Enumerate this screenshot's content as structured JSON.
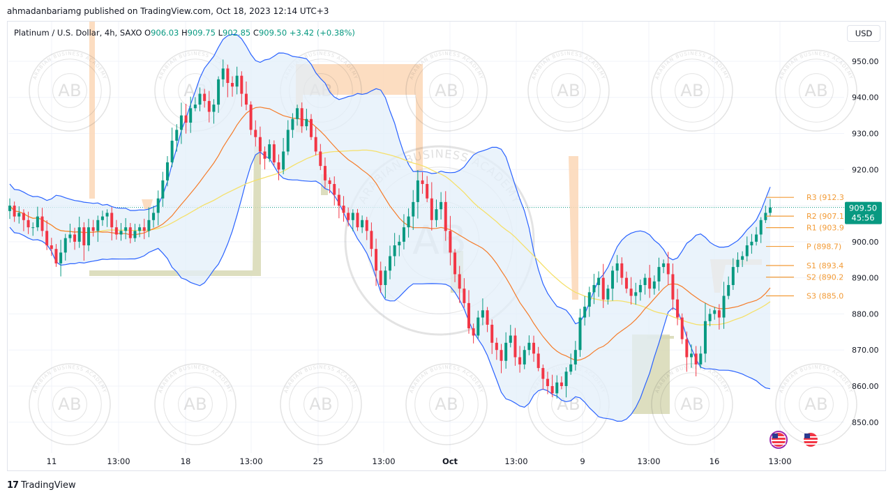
{
  "caption": "ahmadanbariamg published on TradingView.com, Oct 18, 2023 12:14 UTC+3",
  "legend": {
    "symbol": "Platinum / U.S. Dollar, 4h, SAXO",
    "o_label": "O",
    "o": "906.03",
    "h_label": "H",
    "h": "909.75",
    "l_label": "L",
    "l": "902.85",
    "c_label": "C",
    "c": "909.50",
    "change": "+3.42 (+0.38%)"
  },
  "currency_button": "USD",
  "footer": {
    "logo": "17",
    "brand": "TradingView"
  },
  "watermark": {
    "monogram": "AB",
    "ring_text": "ARABIAN BUSINESS ACADEMY"
  },
  "colors": {
    "up": "#089981",
    "down": "#f23645",
    "bollinger": "#2962ff",
    "bollinger_fill": "#e3effa",
    "ma_orange": "#f57c2a",
    "ma_yellow": "#f5e06a",
    "pivot": "#f29b37",
    "supply_zone": "#fbd7b6",
    "demand_zone": "#d7d8b4"
  },
  "chart_data": {
    "type": "candlestick",
    "symbol": "Platinum / U.S. Dollar",
    "timeframe": "4h",
    "ylim": [
      843,
      961
    ],
    "y_ticks": [
      "950.00",
      "940.00",
      "930.00",
      "920.00",
      "910.00",
      "900.00",
      "890.00",
      "880.00",
      "870.00",
      "860.00",
      "850.00"
    ],
    "x_ticks": [
      "11",
      "13:00",
      "18",
      "13:00",
      "25",
      "13:00",
      "Oct",
      "13:00",
      "9",
      "13:00",
      "16",
      "13:00"
    ],
    "last_price": "909.50",
    "countdown": "45:56",
    "pivots": [
      {
        "label": "R3 (912.3",
        "value": 912.3
      },
      {
        "label": "R2 (907.1",
        "value": 907.1
      },
      {
        "label": "R1 (903.9",
        "value": 903.9
      },
      {
        "label": "P (898.7)",
        "value": 898.7
      },
      {
        "label": "S1 (893.4",
        "value": 893.4
      },
      {
        "label": "S2 (890.2",
        "value": 890.2
      },
      {
        "label": "S3 (885.0",
        "value": 885.0
      }
    ],
    "closes": [
      910,
      907,
      908,
      906,
      904,
      904,
      907,
      903,
      899,
      898,
      894,
      897,
      901,
      902,
      900,
      904,
      899,
      904,
      903,
      906,
      907,
      908,
      904,
      902,
      903,
      904,
      901,
      903,
      904,
      903,
      906,
      908,
      912,
      917,
      922,
      928,
      931,
      935,
      933,
      937,
      938,
      941,
      939,
      936,
      938,
      945,
      948,
      944,
      943,
      946,
      941,
      938,
      931,
      929,
      925,
      923,
      927,
      922,
      920,
      925,
      931,
      934,
      937,
      932,
      934,
      929,
      925,
      921,
      917,
      916,
      913,
      910,
      908,
      906,
      908,
      904,
      906,
      903,
      898,
      892,
      888,
      892,
      896,
      899,
      900,
      904,
      907,
      911,
      917,
      916,
      912,
      906,
      909,
      911,
      903,
      897,
      891,
      887,
      883,
      876,
      874,
      879,
      881,
      877,
      872,
      870,
      867,
      872,
      874,
      868,
      866,
      870,
      872,
      869,
      865,
      862,
      860,
      858,
      861,
      860,
      864,
      866,
      870,
      879,
      882,
      886,
      888,
      890,
      884,
      887,
      892,
      894,
      890,
      887,
      885,
      886,
      888,
      890,
      887,
      889,
      893,
      894,
      891,
      884,
      879,
      873,
      868,
      869,
      866,
      869,
      878,
      880,
      881,
      879,
      885,
      888,
      893,
      895,
      896,
      899,
      900,
      902,
      906,
      908,
      909.5
    ]
  }
}
